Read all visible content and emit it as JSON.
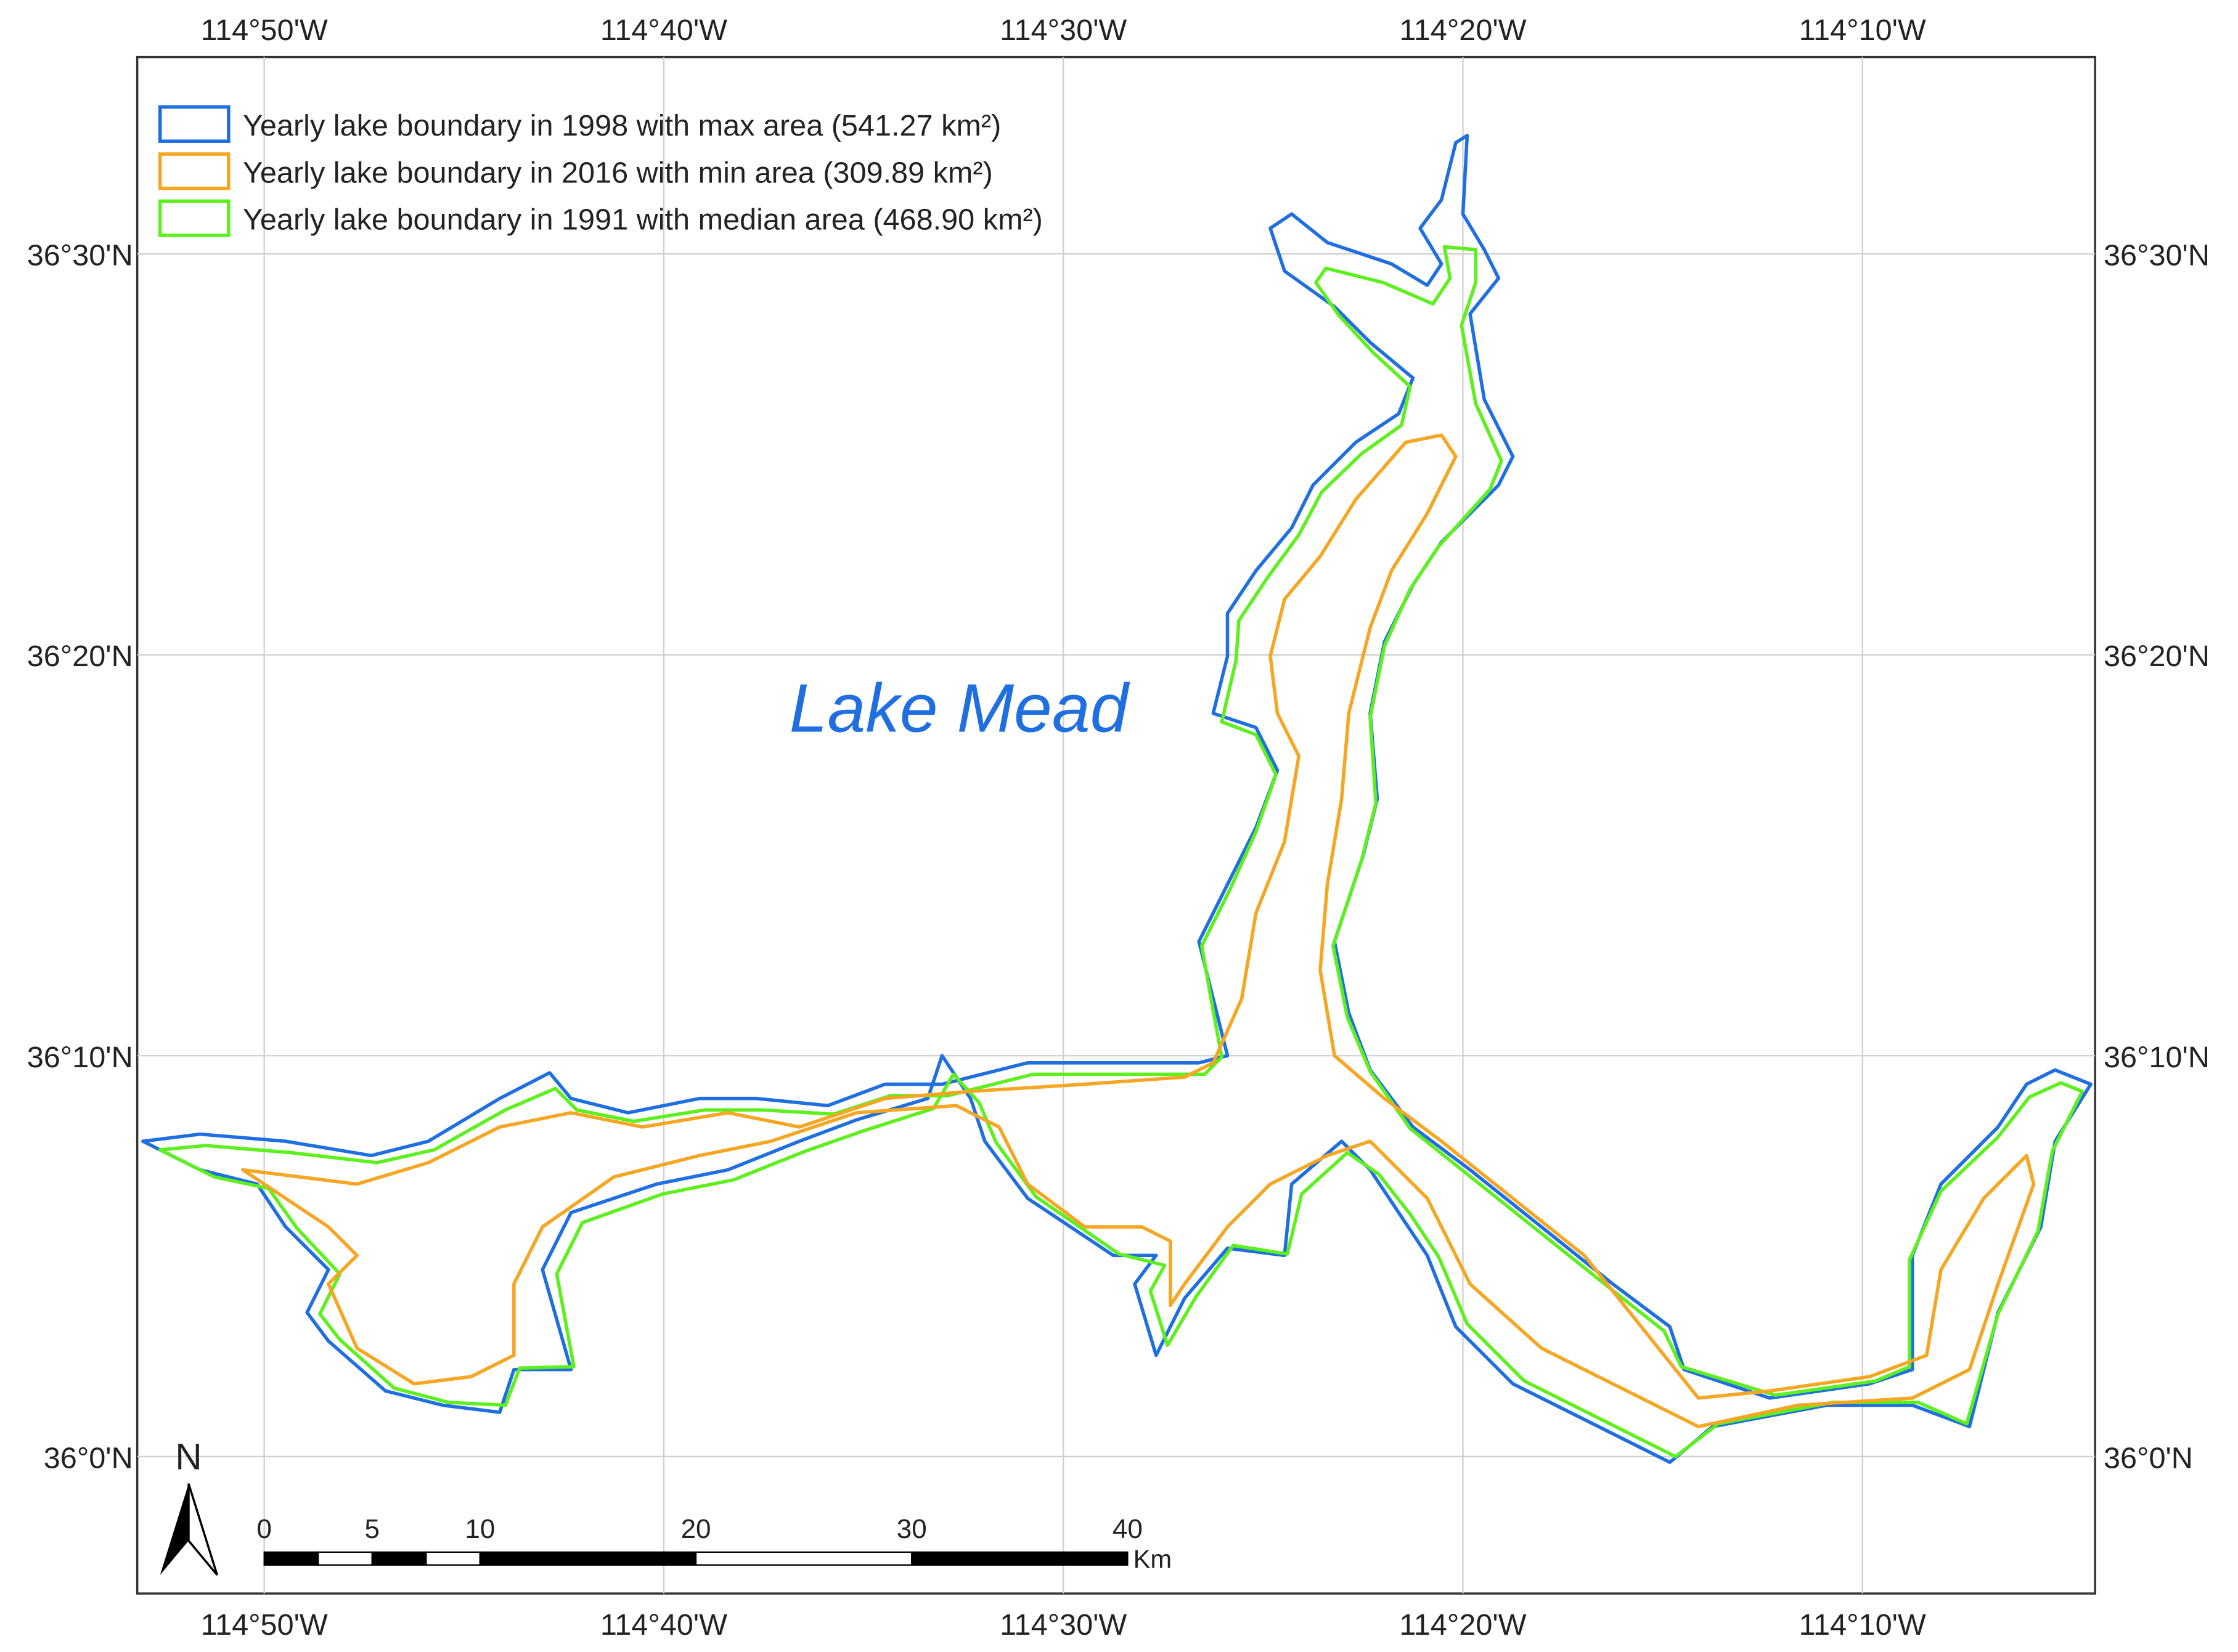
{
  "legend": [
    {
      "label": "Yearly lake boundary in 1998 with max area (541.27 km²)",
      "color": "#1f6fe0"
    },
    {
      "label": "Yearly lake boundary in 2016 with min area (309.89 km²)",
      "color": "#f5a623"
    },
    {
      "label": "Yearly lake boundary in 1991 with median area (468.90 km²)",
      "color": "#5ef01e"
    }
  ],
  "map_label": "Lake Mead",
  "longitude_labels": [
    "114°50'W",
    "114°40'W",
    "114°30'W",
    "114°20'W",
    "114°10'W"
  ],
  "latitude_labels": [
    "36°30'N",
    "36°20'N",
    "36°10'N",
    "36°0'N"
  ],
  "north_arrow": "N",
  "scale_bar": {
    "ticks": [
      0,
      5,
      10,
      20,
      30,
      40
    ],
    "unit": "Km"
  }
}
